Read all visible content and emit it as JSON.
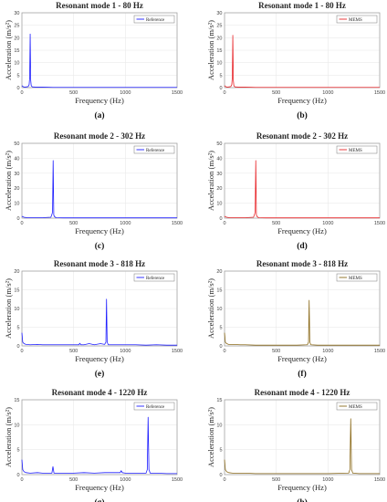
{
  "chart_data": [
    {
      "type": "line",
      "title": "Resonant mode 1 - 80 Hz",
      "xlabel": "Frequency (Hz)",
      "ylabel": "Acceleration (m/s²)",
      "xlim": [
        0,
        1500
      ],
      "ylim": [
        0,
        30
      ],
      "xticks": [
        0,
        500,
        1000,
        1500
      ],
      "yticks": [
        0,
        5,
        10,
        15,
        20,
        25,
        30
      ],
      "grid": true,
      "legend_position": "top-right",
      "series": [
        {
          "name": "Reference",
          "color": "#1f1fff",
          "x": [
            0,
            15,
            30,
            45,
            60,
            70,
            75,
            80,
            85,
            90,
            100,
            130,
            200,
            300,
            500,
            800,
            1000,
            1500
          ],
          "y": [
            0.8,
            0.3,
            0.2,
            0.3,
            0.4,
            1.2,
            4.0,
            21.5,
            3.0,
            0.8,
            0.3,
            0.2,
            0.2,
            0.1,
            0.1,
            0.1,
            0.1,
            0.1
          ]
        }
      ],
      "caption": "(a)"
    },
    {
      "type": "line",
      "title": "Resonant mode 1 - 80 Hz",
      "xlabel": "Frequency (Hz)",
      "ylabel": "Acceleration (m/s²)",
      "xlim": [
        0,
        1500
      ],
      "ylim": [
        0,
        30
      ],
      "xticks": [
        0,
        500,
        1000,
        1500
      ],
      "yticks": [
        0,
        5,
        10,
        15,
        20,
        25,
        30
      ],
      "grid": true,
      "legend_position": "top-right",
      "series": [
        {
          "name": "MEMS",
          "color": "#e8262a",
          "x": [
            0,
            15,
            30,
            45,
            60,
            70,
            75,
            80,
            85,
            90,
            100,
            130,
            200,
            300,
            500,
            800,
            1000,
            1500
          ],
          "y": [
            0.8,
            0.3,
            0.2,
            0.3,
            0.4,
            1.2,
            4.0,
            21.0,
            3.0,
            0.8,
            0.3,
            0.2,
            0.2,
            0.1,
            0.1,
            0.1,
            0.1,
            0.1
          ]
        }
      ],
      "caption": "(b)"
    },
    {
      "type": "line",
      "title": "Resonant mode 2 - 302 Hz",
      "xlabel": "Frequency (Hz)",
      "ylabel": "Acceleration (m/s²)",
      "xlim": [
        0,
        1500
      ],
      "ylim": [
        0,
        50
      ],
      "xticks": [
        0,
        500,
        1000,
        1500
      ],
      "yticks": [
        0,
        10,
        20,
        30,
        40,
        50
      ],
      "grid": true,
      "legend_position": "top-right",
      "series": [
        {
          "name": "Reference",
          "color": "#1f1fff",
          "x": [
            0,
            20,
            50,
            100,
            200,
            280,
            290,
            296,
            302,
            308,
            315,
            330,
            400,
            600,
            1000,
            1500
          ],
          "y": [
            1.2,
            0.6,
            0.3,
            0.3,
            0.3,
            0.6,
            2.5,
            4.0,
            38.5,
            2.0,
            1.0,
            0.3,
            0.2,
            0.2,
            0.2,
            0.2
          ]
        }
      ],
      "caption": "(c)"
    },
    {
      "type": "line",
      "title": "Resonant mode 2 - 302 Hz",
      "xlabel": "Frequency (Hz)",
      "ylabel": "Acceleration (m/s²)",
      "xlim": [
        0,
        1500
      ],
      "ylim": [
        0,
        50
      ],
      "xticks": [
        0,
        500,
        1000,
        1500
      ],
      "yticks": [
        0,
        10,
        20,
        30,
        40,
        50
      ],
      "grid": true,
      "legend_position": "top-right",
      "series": [
        {
          "name": "MEMS",
          "color": "#e8262a",
          "x": [
            0,
            20,
            50,
            100,
            200,
            280,
            290,
            296,
            302,
            308,
            315,
            330,
            400,
            600,
            1000,
            1500
          ],
          "y": [
            1.2,
            0.6,
            0.3,
            0.3,
            0.3,
            0.6,
            2.5,
            4.0,
            38.5,
            2.0,
            1.0,
            0.3,
            0.2,
            0.2,
            0.2,
            0.2
          ]
        }
      ],
      "caption": "(d)"
    },
    {
      "type": "line",
      "title": "Resonant mode 3 - 818 Hz",
      "xlabel": "Frequency (Hz)",
      "ylabel": "Acceleration (m/s²)",
      "xlim": [
        0,
        1500
      ],
      "ylim": [
        0,
        20
      ],
      "xticks": [
        0,
        500,
        1000,
        1500
      ],
      "yticks": [
        0,
        5,
        10,
        15,
        20
      ],
      "grid": true,
      "legend_position": "top-right",
      "series": [
        {
          "name": "Reference",
          "color": "#1f1fff",
          "x": [
            0,
            8,
            20,
            40,
            80,
            150,
            200,
            300,
            400,
            500,
            550,
            560,
            570,
            600,
            650,
            700,
            760,
            800,
            812,
            818,
            824,
            835,
            900,
            1000,
            1100,
            1200,
            1300,
            1400,
            1500
          ],
          "y": [
            3.5,
            1.0,
            0.6,
            0.4,
            0.3,
            0.4,
            0.3,
            0.3,
            0.3,
            0.3,
            0.3,
            0.7,
            0.3,
            0.3,
            0.6,
            0.3,
            0.6,
            0.4,
            1.0,
            12.5,
            1.0,
            0.3,
            0.3,
            0.3,
            0.3,
            0.2,
            0.3,
            0.2,
            0.2
          ]
        }
      ],
      "caption": "(e)"
    },
    {
      "type": "line",
      "title": "Resonant mode 3 - 818 Hz",
      "xlabel": "Frequency (Hz)",
      "ylabel": "Acceleration (m/s²)",
      "xlim": [
        0,
        1500
      ],
      "ylim": [
        0,
        20
      ],
      "xticks": [
        0,
        500,
        1000,
        1500
      ],
      "yticks": [
        0,
        5,
        10,
        15,
        20
      ],
      "grid": true,
      "legend_position": "top-right",
      "series": [
        {
          "name": "MEMS",
          "color": "#8b6a1a",
          "x": [
            0,
            8,
            20,
            40,
            80,
            150,
            200,
            300,
            400,
            500,
            600,
            700,
            800,
            812,
            818,
            824,
            835,
            900,
            1000,
            1200,
            1500
          ],
          "y": [
            3.5,
            1.0,
            0.6,
            0.4,
            0.4,
            0.3,
            0.3,
            0.2,
            0.2,
            0.2,
            0.2,
            0.2,
            0.3,
            1.0,
            12.2,
            1.0,
            0.3,
            0.2,
            0.2,
            0.2,
            0.2
          ]
        }
      ],
      "caption": "(f)"
    },
    {
      "type": "line",
      "title": "Resonant mode 4 - 1220 Hz",
      "xlabel": "Frequency (Hz)",
      "ylabel": "Acceleration (m/s²)",
      "xlim": [
        0,
        1500
      ],
      "ylim": [
        0,
        15
      ],
      "xticks": [
        0,
        500,
        1000,
        1500
      ],
      "yticks": [
        0,
        5,
        10,
        15
      ],
      "grid": true,
      "legend_position": "top-right",
      "series": [
        {
          "name": "Reference",
          "color": "#1f1fff",
          "x": [
            0,
            8,
            20,
            40,
            80,
            150,
            200,
            290,
            300,
            310,
            400,
            500,
            600,
            700,
            800,
            900,
            950,
            960,
            970,
            1000,
            1100,
            1200,
            1212,
            1220,
            1228,
            1240,
            1300,
            1400,
            1500
          ],
          "y": [
            3.0,
            1.0,
            0.6,
            0.4,
            0.3,
            0.4,
            0.3,
            0.3,
            1.6,
            0.3,
            0.3,
            0.3,
            0.4,
            0.3,
            0.4,
            0.4,
            0.4,
            0.8,
            0.4,
            0.3,
            0.3,
            0.3,
            1.0,
            11.5,
            1.0,
            0.3,
            0.3,
            0.2,
            0.2
          ]
        }
      ],
      "caption": "(g)"
    },
    {
      "type": "line",
      "title": "Resonant mode 4 - 1220 Hz",
      "xlabel": "Frequency (Hz)",
      "ylabel": "Acceleration (m/s²)",
      "xlim": [
        0,
        1500
      ],
      "ylim": [
        0,
        15
      ],
      "xticks": [
        0,
        500,
        1000,
        1500
      ],
      "yticks": [
        0,
        5,
        10,
        15
      ],
      "grid": true,
      "legend_position": "top-right",
      "series": [
        {
          "name": "MEMS",
          "color": "#8b6a1a",
          "x": [
            0,
            8,
            20,
            40,
            80,
            150,
            200,
            300,
            400,
            500,
            600,
            800,
            1000,
            1200,
            1212,
            1220,
            1228,
            1240,
            1300,
            1500
          ],
          "y": [
            3.0,
            1.0,
            0.6,
            0.4,
            0.3,
            0.3,
            0.3,
            0.2,
            0.2,
            0.2,
            0.2,
            0.2,
            0.2,
            0.3,
            1.0,
            11.2,
            1.0,
            0.3,
            0.2,
            0.2
          ]
        }
      ],
      "caption": "(h)"
    }
  ]
}
